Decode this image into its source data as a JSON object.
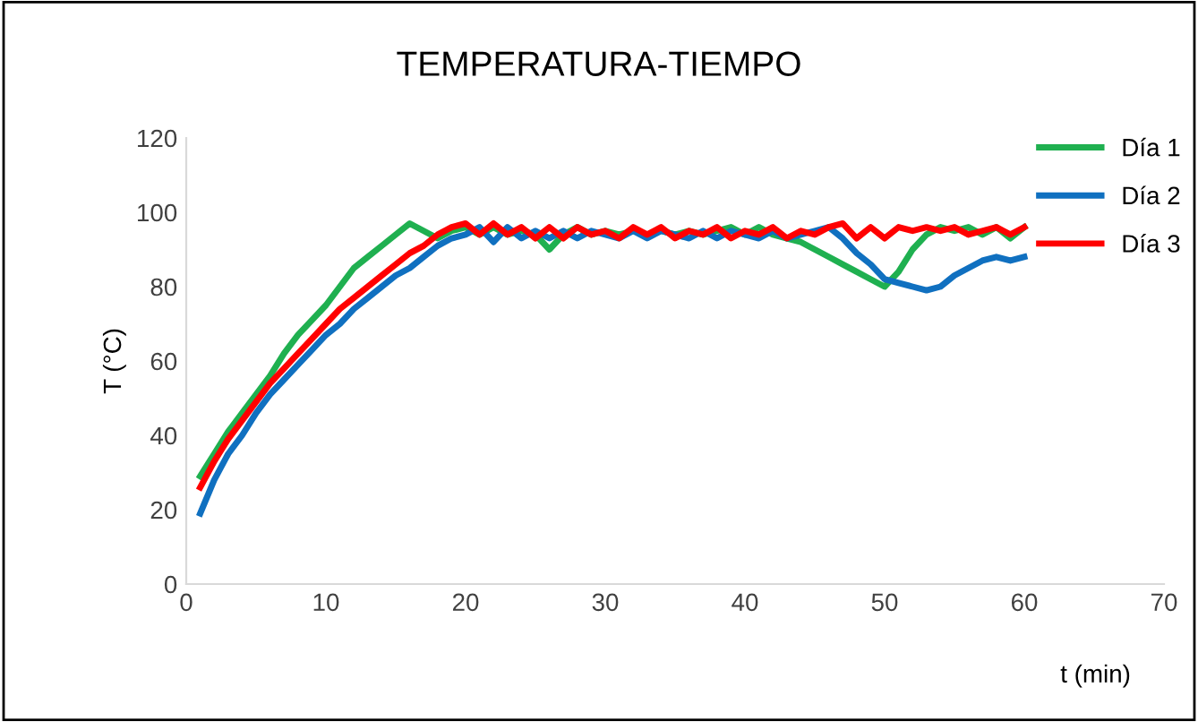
{
  "chart_data": {
    "type": "line",
    "title": "TEMPERATURA-TIEMPO",
    "xlabel": "t (min)",
    "ylabel": "T (°C)",
    "x": [
      1,
      2,
      3,
      4,
      5,
      6,
      7,
      8,
      9,
      10,
      11,
      12,
      13,
      14,
      15,
      16,
      17,
      18,
      19,
      20,
      21,
      22,
      23,
      24,
      25,
      26,
      27,
      28,
      29,
      30,
      31,
      32,
      33,
      34,
      35,
      36,
      37,
      38,
      39,
      40,
      41,
      42,
      43,
      44,
      45,
      46,
      47,
      48,
      49,
      50,
      51,
      52,
      53,
      54,
      55,
      56,
      57,
      58,
      59,
      60
    ],
    "series": [
      {
        "name": "Día 1",
        "color": "#1fb050",
        "values": [
          29,
          35,
          41,
          46,
          51,
          56,
          62,
          67,
          71,
          75,
          80,
          85,
          88,
          91,
          94,
          97,
          95,
          93,
          95,
          96,
          94,
          96,
          94,
          95,
          94,
          90,
          94,
          96,
          94,
          95,
          94,
          95,
          94,
          95,
          94,
          95,
          94,
          95,
          96,
          94,
          96,
          94,
          93,
          92,
          90,
          88,
          86,
          84,
          82,
          80,
          84,
          90,
          94,
          96,
          95,
          96,
          94,
          96,
          93,
          96
        ]
      },
      {
        "name": "Día 2",
        "color": "#1070c0",
        "values": [
          19,
          28,
          35,
          40,
          46,
          51,
          55,
          59,
          63,
          67,
          70,
          74,
          77,
          80,
          83,
          85,
          88,
          91,
          93,
          94,
          96,
          92,
          96,
          93,
          95,
          93,
          95,
          93,
          95,
          94,
          93,
          95,
          93,
          95,
          94,
          93,
          95,
          93,
          95,
          94,
          93,
          95,
          93,
          94,
          95,
          96,
          93,
          89,
          86,
          82,
          81,
          80,
          79,
          80,
          83,
          85,
          87,
          88,
          87,
          88
        ]
      },
      {
        "name": "Día 3",
        "color": "#ff0000",
        "values": [
          26,
          33,
          39,
          44,
          49,
          54,
          58,
          62,
          66,
          70,
          74,
          77,
          80,
          83,
          86,
          89,
          91,
          94,
          96,
          97,
          94,
          97,
          94,
          96,
          93,
          96,
          93,
          96,
          94,
          95,
          93,
          96,
          94,
          96,
          93,
          95,
          94,
          96,
          93,
          95,
          94,
          96,
          93,
          95,
          94,
          96,
          97,
          93,
          96,
          93,
          96,
          95,
          96,
          95,
          96,
          94,
          95,
          96,
          94,
          96
        ]
      }
    ],
    "xlim": [
      0,
      70
    ],
    "xticks": [
      0,
      10,
      20,
      30,
      40,
      50,
      60,
      70
    ],
    "ylim": [
      0,
      120
    ],
    "yticks": [
      0,
      20,
      40,
      60,
      80,
      100,
      120
    ],
    "grid": false,
    "legend": "right",
    "marker": "none",
    "line_style": "solid"
  }
}
